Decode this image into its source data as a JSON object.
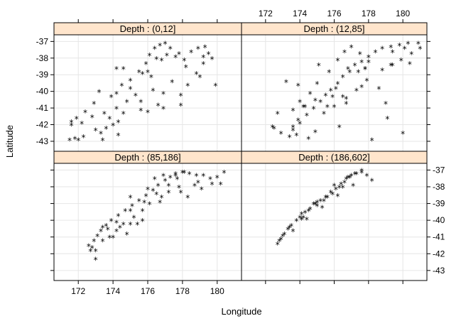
{
  "chart_data": {
    "type": "scatter",
    "xlabel": "Longitude",
    "ylabel": "Latitude",
    "xlim": [
      170.6,
      181.4
    ],
    "ylim": [
      -43.6,
      -36.6
    ],
    "x_ticks": [
      172,
      174,
      176,
      178,
      180
    ],
    "y_ticks": [
      -37,
      -38,
      -39,
      -40,
      -41,
      -42,
      -43
    ],
    "grid": true,
    "marker": "*",
    "point_colors": {
      "black": "#000000",
      "red": "#ff0000",
      "green": "#00cc00"
    },
    "strip_color": "#ffe5cc",
    "panels": [
      {
        "strip": "Depth : (0,12]",
        "points": {
          "black": [
            [
              171.5,
              -42.9
            ],
            [
              171.8,
              -42.8
            ],
            [
              172.0,
              -42.9
            ],
            [
              172.3,
              -42.7
            ],
            [
              171.6,
              -41.8
            ],
            [
              171.9,
              -41.6
            ],
            [
              172.4,
              -41.2
            ],
            [
              172.2,
              -41.9
            ],
            [
              173.0,
              -42.3
            ],
            [
              173.3,
              -42.5
            ],
            [
              173.6,
              -42.2
            ],
            [
              174.0,
              -42.0
            ],
            [
              173.8,
              -41.6
            ],
            [
              174.3,
              -41.8
            ],
            [
              174.6,
              -41.3
            ],
            [
              174.2,
              -41.0
            ],
            [
              173.9,
              -40.3
            ],
            [
              174.2,
              -40.1
            ],
            [
              173.2,
              -40.0
            ],
            [
              172.9,
              -40.7
            ],
            [
              174.5,
              -39.6
            ],
            [
              175.0,
              -39.3
            ],
            [
              175.5,
              -38.8
            ],
            [
              175.9,
              -38.3
            ],
            [
              176.1,
              -37.8
            ],
            [
              176.4,
              -37.4
            ],
            [
              176.7,
              -37.2
            ],
            [
              177.0,
              -37.1
            ],
            [
              177.3,
              -37.4
            ],
            [
              177.1,
              -37.8
            ],
            [
              176.8,
              -38.1
            ],
            [
              177.6,
              -37.9
            ],
            [
              178.1,
              -38.1
            ],
            [
              178.5,
              -37.6
            ],
            [
              178.9,
              -37.4
            ],
            [
              179.3,
              -37.3
            ],
            [
              179.5,
              -37.7
            ],
            [
              179.7,
              -38.0
            ],
            [
              179.2,
              -38.3
            ],
            [
              178.8,
              -38.9
            ],
            [
              178.3,
              -39.6
            ],
            [
              177.4,
              -39.4
            ],
            [
              176.9,
              -40.1
            ],
            [
              176.6,
              -40.8
            ],
            [
              176.0,
              -41.2
            ],
            [
              175.6,
              -40.6
            ],
            [
              175.3,
              -40.2
            ],
            [
              174.8,
              -40.6
            ],
            [
              174.3,
              -42.6
            ],
            [
              173.5,
              -41.3
            ],
            [
              176.3,
              -39.9
            ],
            [
              177.9,
              -40.2
            ],
            [
              179.9,
              -39.6
            ],
            [
              176.2,
              -39.1
            ],
            [
              175.7,
              -38.9
            ],
            [
              177.8,
              -37.7
            ],
            [
              178.2,
              -38.5
            ],
            [
              176.5,
              -38.0
            ]
          ],
          "red": [
            [
              171.6,
              -42.0
            ],
            [
              172.8,
              -41.5
            ],
            [
              174.2,
              -38.6
            ],
            [
              174.6,
              -38.6
            ],
            [
              176.0,
              -38.8
            ],
            [
              176.9,
              -41.0
            ],
            [
              177.9,
              -40.8
            ],
            [
              179.0,
              -39.1
            ],
            [
              175.6,
              -41.1
            ],
            [
              173.4,
              -42.9
            ],
            [
              175.0,
              -39.8
            ]
          ],
          "green": [
            [
              179.2,
              -37.9
            ]
          ]
        }
      },
      {
        "strip": "Depth : (12,85]",
        "points": {
          "black": [
            [
              172.5,
              -42.2
            ],
            [
              172.9,
              -42.5
            ],
            [
              173.4,
              -42.7
            ],
            [
              173.8,
              -42.6
            ],
            [
              173.6,
              -42.1
            ],
            [
              174.0,
              -41.9
            ],
            [
              174.4,
              -41.4
            ],
            [
              174.8,
              -41.0
            ],
            [
              175.2,
              -40.6
            ],
            [
              175.5,
              -40.2
            ],
            [
              175.8,
              -39.9
            ],
            [
              176.2,
              -39.5
            ],
            [
              176.5,
              -39.1
            ],
            [
              176.9,
              -38.8
            ],
            [
              177.2,
              -38.4
            ],
            [
              177.6,
              -38.2
            ],
            [
              178.0,
              -37.9
            ],
            [
              178.4,
              -37.6
            ],
            [
              178.8,
              -37.4
            ],
            [
              179.3,
              -37.3
            ],
            [
              179.8,
              -37.2
            ],
            [
              180.3,
              -37.1
            ],
            [
              180.9,
              -37.1
            ],
            [
              181.0,
              -37.4
            ],
            [
              180.5,
              -37.7
            ],
            [
              179.9,
              -38.1
            ],
            [
              179.4,
              -38.4
            ],
            [
              178.8,
              -38.7
            ],
            [
              177.5,
              -37.7
            ],
            [
              177.0,
              -37.3
            ],
            [
              176.6,
              -37.6
            ],
            [
              176.2,
              -38.1
            ],
            [
              175.7,
              -38.8
            ],
            [
              175.0,
              -39.5
            ],
            [
              174.6,
              -40.1
            ],
            [
              174.0,
              -40.6
            ],
            [
              173.6,
              -41.1
            ],
            [
              175.4,
              -41.3
            ],
            [
              176.0,
              -40.9
            ],
            [
              176.7,
              -40.4
            ],
            [
              177.3,
              -39.9
            ],
            [
              177.9,
              -39.3
            ],
            [
              178.6,
              -39.8
            ],
            [
              180.0,
              -42.5
            ],
            [
              179.1,
              -41.6
            ],
            [
              176.3,
              -42.1
            ],
            [
              174.5,
              -42.8
            ],
            [
              173.2,
              -39.4
            ],
            [
              173.9,
              -39.6
            ],
            [
              175.1,
              -38.4
            ],
            [
              176.1,
              -39.8
            ],
            [
              174.3,
              -40.9
            ],
            [
              175.9,
              -40.3
            ],
            [
              177.8,
              -38.6
            ],
            [
              178.2,
              -42.9
            ],
            [
              172.7,
              -41.3
            ],
            [
              174.9,
              -42.4
            ]
          ],
          "red": [
            [
              172.4,
              -42.1
            ],
            [
              173.6,
              -42.3
            ],
            [
              174.2,
              -40.9
            ],
            [
              174.9,
              -40.5
            ],
            [
              175.6,
              -40.9
            ],
            [
              176.5,
              -40.3
            ],
            [
              176.7,
              -40.7
            ],
            [
              177.4,
              -38.8
            ],
            [
              178.0,
              -38.2
            ],
            [
              177.6,
              -39.7
            ],
            [
              179.4,
              -37.6
            ],
            [
              180.1,
              -37.4
            ],
            [
              179.0,
              -40.7
            ],
            [
              180.4,
              -38.3
            ],
            [
              176.8,
              -38.6
            ]
          ],
          "green": [
            [
              173.9,
              -41.7
            ],
            [
              177.8,
              -38.6
            ],
            [
              179.3,
              -38.4
            ]
          ]
        }
      },
      {
        "strip": "Depth : (85,186]",
        "points": {
          "black": [
            [
              172.6,
              -41.5
            ],
            [
              172.9,
              -41.2
            ],
            [
              173.1,
              -40.9
            ],
            [
              173.3,
              -40.6
            ],
            [
              173.6,
              -40.3
            ],
            [
              173.9,
              -40.0
            ],
            [
              174.3,
              -39.7
            ],
            [
              174.7,
              -39.4
            ],
            [
              175.1,
              -39.1
            ],
            [
              175.5,
              -38.8
            ],
            [
              175.9,
              -38.5
            ],
            [
              176.3,
              -38.2
            ],
            [
              176.6,
              -37.9
            ],
            [
              177.0,
              -37.6
            ],
            [
              177.3,
              -37.4
            ],
            [
              177.6,
              -37.2
            ],
            [
              178.0,
              -37.1
            ],
            [
              178.4,
              -37.2
            ],
            [
              178.8,
              -37.3
            ],
            [
              179.2,
              -37.3
            ],
            [
              179.6,
              -37.5
            ],
            [
              180.0,
              -37.4
            ],
            [
              180.4,
              -37.1
            ],
            [
              179.7,
              -37.8
            ],
            [
              178.7,
              -37.9
            ],
            [
              177.8,
              -38.0
            ],
            [
              177.2,
              -38.3
            ],
            [
              176.8,
              -38.6
            ],
            [
              176.1,
              -39.0
            ],
            [
              175.7,
              -39.4
            ],
            [
              175.2,
              -39.8
            ],
            [
              174.6,
              -40.2
            ],
            [
              174.2,
              -40.6
            ],
            [
              173.8,
              -41.0
            ],
            [
              173.4,
              -41.2
            ],
            [
              172.8,
              -41.6
            ],
            [
              173.0,
              -41.8
            ],
            [
              174.0,
              -41.0
            ],
            [
              178.3,
              -38.6
            ],
            [
              176.4,
              -37.5
            ],
            [
              175.0,
              -38.6
            ],
            [
              177.7,
              -37.5
            ],
            [
              178.9,
              -37.7
            ],
            [
              180.2,
              -37.8
            ],
            [
              175.4,
              -40.2
            ],
            [
              176.9,
              -37.3
            ]
          ],
          "red": [
            [
              172.7,
              -41.8
            ],
            [
              173.0,
              -42.3
            ],
            [
              173.7,
              -40.5
            ],
            [
              174.4,
              -40.4
            ],
            [
              175.0,
              -39.4
            ],
            [
              175.8,
              -38.9
            ],
            [
              176.5,
              -38.4
            ],
            [
              177.2,
              -37.9
            ],
            [
              177.6,
              -37.3
            ],
            [
              178.1,
              -37.1
            ],
            [
              176.0,
              -38.1
            ],
            [
              174.8,
              -40.8
            ],
            [
              175.7,
              -40.0
            ],
            [
              176.7,
              -38.9
            ],
            [
              177.9,
              -38.3
            ],
            [
              179.1,
              -38.1
            ]
          ],
          "green": [
            [
              174.2,
              -40.1
            ],
            [
              175.0,
              -40.2
            ],
            [
              173.4,
              -40.4
            ]
          ]
        }
      },
      {
        "strip": "Depth : (186,602]",
        "points": {
          "black": [
            [
              172.7,
              -41.4
            ],
            [
              172.9,
              -41.1
            ],
            [
              173.1,
              -40.8
            ],
            [
              173.3,
              -40.5
            ],
            [
              173.5,
              -40.3
            ],
            [
              173.8,
              -40.0
            ],
            [
              174.0,
              -39.8
            ],
            [
              174.3,
              -39.5
            ],
            [
              174.6,
              -39.3
            ],
            [
              174.9,
              -39.0
            ],
            [
              175.2,
              -38.8
            ],
            [
              175.5,
              -38.6
            ],
            [
              175.8,
              -38.3
            ],
            [
              176.1,
              -38.1
            ],
            [
              176.4,
              -37.8
            ],
            [
              176.7,
              -37.5
            ],
            [
              177.0,
              -37.3
            ],
            [
              177.3,
              -37.2
            ],
            [
              177.6,
              -37.1
            ],
            [
              177.9,
              -37.3
            ],
            [
              178.2,
              -37.6
            ],
            [
              177.1,
              -37.9
            ],
            [
              176.2,
              -38.5
            ],
            [
              175.3,
              -39.2
            ],
            [
              174.4,
              -39.9
            ],
            [
              173.6,
              -40.6
            ],
            [
              174.1,
              -39.6
            ],
            [
              175.0,
              -38.9
            ],
            [
              176.5,
              -38.0
            ],
            [
              172.8,
              -41.2
            ]
          ],
          "red": [
            [
              173.0,
              -40.9
            ],
            [
              173.4,
              -40.4
            ],
            [
              174.1,
              -39.9
            ],
            [
              174.5,
              -39.4
            ],
            [
              175.0,
              -39.1
            ],
            [
              175.4,
              -38.8
            ],
            [
              175.9,
              -38.4
            ],
            [
              176.3,
              -38.0
            ],
            [
              176.6,
              -37.7
            ],
            [
              176.9,
              -37.4
            ],
            [
              177.2,
              -37.2
            ],
            [
              174.8,
              -39.0
            ],
            [
              175.6,
              -38.6
            ],
            [
              176.0,
              -37.9
            ]
          ],
          "green": [
            [
              174.2,
              -39.8
            ],
            [
              176.8,
              -37.4
            ],
            [
              177.6,
              -37.0
            ]
          ]
        }
      }
    ]
  }
}
